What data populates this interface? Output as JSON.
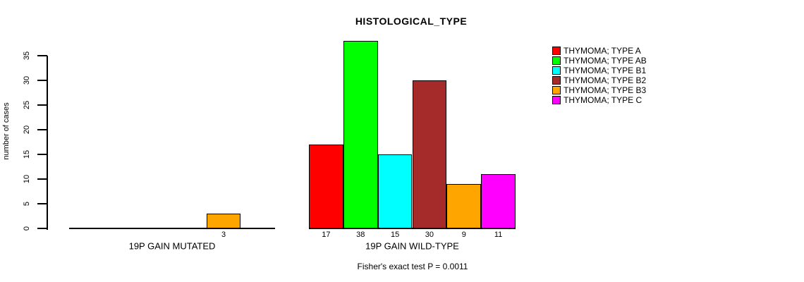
{
  "chart_data": {
    "type": "bar",
    "title": "HISTOLOGICAL_TYPE",
    "xlabel": "",
    "ylabel": "number of cases",
    "ylim": [
      0,
      35
    ],
    "yticks": [
      0,
      5,
      10,
      15,
      20,
      25,
      30,
      35
    ],
    "grid": false,
    "legend_position": "right",
    "groups": [
      "19P GAIN MUTATED",
      "19P GAIN WILD-TYPE"
    ],
    "series": [
      {
        "name": "THYMOMA; TYPE A",
        "color": "#FF0000",
        "values": [
          0,
          17
        ]
      },
      {
        "name": "THYMOMA; TYPE AB",
        "color": "#00FF00",
        "values": [
          0,
          38
        ]
      },
      {
        "name": "THYMOMA; TYPE B1",
        "color": "#00FFFF",
        "values": [
          0,
          15
        ]
      },
      {
        "name": "THYMOMA; TYPE B2",
        "color": "#A52A2A",
        "values": [
          0,
          30
        ]
      },
      {
        "name": "THYMOMA; TYPE B3",
        "color": "#FFA500",
        "values": [
          3,
          9
        ]
      },
      {
        "name": "THYMOMA; TYPE C",
        "color": "#FF00FF",
        "values": [
          0,
          11
        ]
      }
    ],
    "bar_value_labels": {
      "19P GAIN MUTATED": [
        "",
        "",
        "",
        "",
        "3",
        ""
      ],
      "19P GAIN WILD-TYPE": [
        "17",
        "38",
        "15",
        "30",
        "9",
        "11"
      ]
    },
    "annotation": "Fisher's exact test P = 0.0011",
    "colors": {
      "foreground": "#000000",
      "background": "#FFFFFF"
    }
  }
}
